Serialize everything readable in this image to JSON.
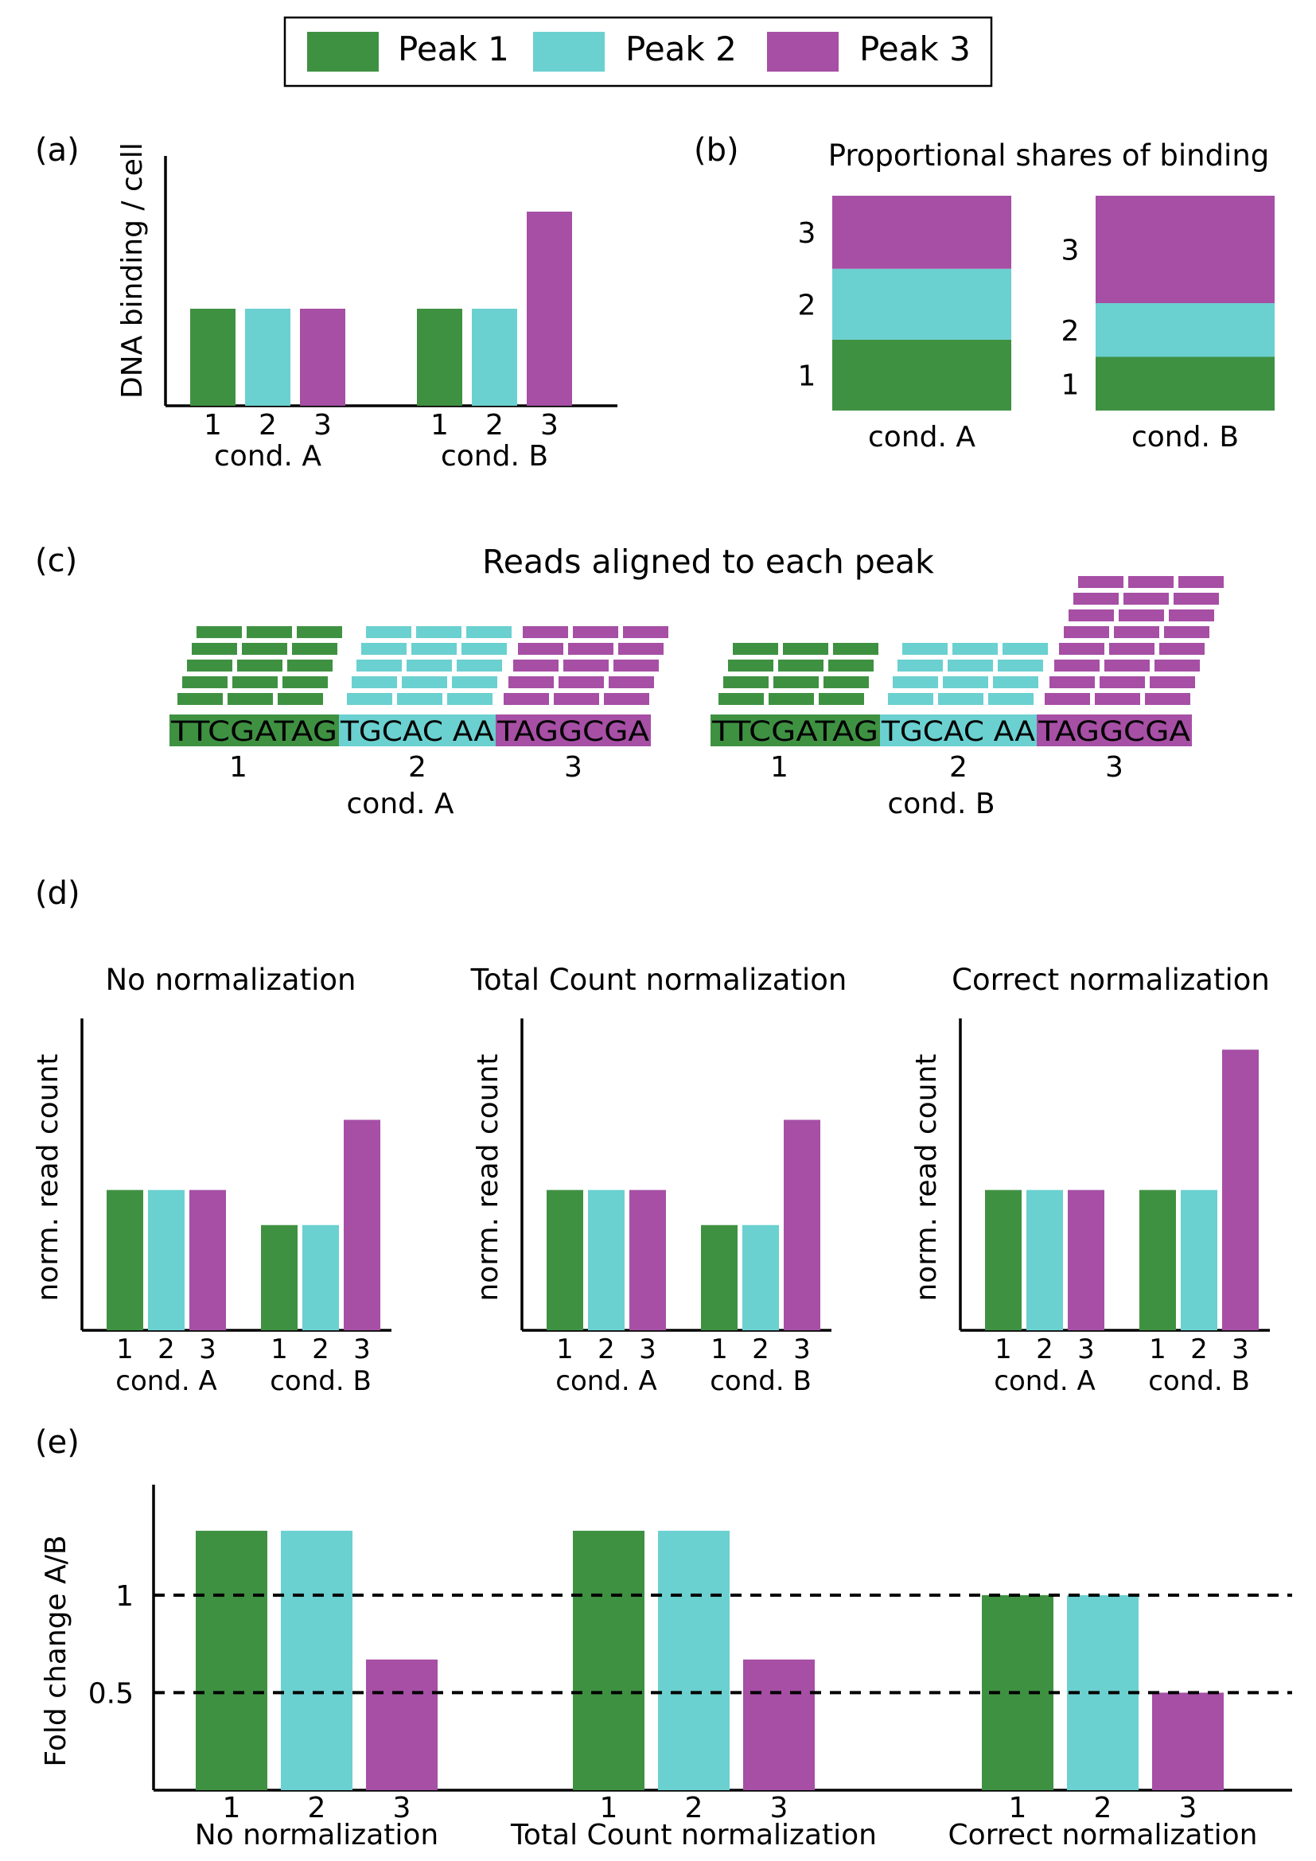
{
  "legend": {
    "position": "top-center",
    "entries": [
      {
        "label": "Peak 1",
        "color": "#3f9142"
      },
      {
        "label": "Peak 2",
        "color": "#6bd0d0"
      },
      {
        "label": "Peak 3",
        "color": "#a64fa5"
      }
    ]
  },
  "colors": {
    "peak1": "#3f9142",
    "peak2": "#6bd0d0",
    "peak3": "#a64fa5"
  },
  "panels": {
    "a": {
      "tag": "(a)",
      "chart_data": {
        "type": "bar",
        "ylabel": "DNA binding / cell",
        "groups": [
          {
            "label": "cond. A",
            "categories": [
              "1",
              "2",
              "3"
            ],
            "values": [
              1.0,
              1.0,
              1.0
            ]
          },
          {
            "label": "cond. B",
            "categories": [
              "1",
              "2",
              "3"
            ],
            "values": [
              1.0,
              1.0,
              2.0
            ]
          }
        ],
        "ylim": [
          0,
          2.5
        ]
      }
    },
    "b": {
      "tag": "(b)",
      "title": "Proportional shares of binding",
      "chart_data": {
        "type": "bar",
        "stacked": true,
        "groups": [
          {
            "label": "cond. A",
            "categories": [
              "1",
              "2",
              "3"
            ],
            "values": [
              0.33,
              0.33,
              0.34
            ]
          },
          {
            "label": "cond. B",
            "categories": [
              "1",
              "2",
              "3"
            ],
            "values": [
              0.25,
              0.25,
              0.5
            ]
          }
        ]
      }
    },
    "c": {
      "tag": "(c)",
      "title": "Reads aligned to each peak",
      "conditions": [
        {
          "label": "cond. A",
          "segments": [
            "TTCGATAG",
            "TGCAC AA",
            "TAGGCGA"
          ],
          "peak_labels": [
            "1",
            "2",
            "3"
          ],
          "read_rows": [
            5,
            5,
            5
          ]
        },
        {
          "label": "cond. B",
          "segments": [
            "TTCGATAG",
            "TGCAC AA",
            "TAGGCGA"
          ],
          "peak_labels": [
            "1",
            "2",
            "3"
          ],
          "read_rows": [
            4,
            4,
            8
          ]
        }
      ]
    },
    "d": {
      "tag": "(d)",
      "chart_data": [
        {
          "type": "bar",
          "title": "No normalization",
          "ylabel": "norm. read count",
          "groups": [
            {
              "label": "cond. A",
              "categories": [
                "1",
                "2",
                "3"
              ],
              "values": [
                1.0,
                1.0,
                1.0
              ]
            },
            {
              "label": "cond. B",
              "categories": [
                "1",
                "2",
                "3"
              ],
              "values": [
                0.75,
                0.75,
                1.5
              ]
            }
          ],
          "ylim": [
            0,
            2.2
          ]
        },
        {
          "type": "bar",
          "title": "Total Count normalization",
          "ylabel": "norm. read count",
          "groups": [
            {
              "label": "cond. A",
              "categories": [
                "1",
                "2",
                "3"
              ],
              "values": [
                1.0,
                1.0,
                1.0
              ]
            },
            {
              "label": "cond. B",
              "categories": [
                "1",
                "2",
                "3"
              ],
              "values": [
                0.75,
                0.75,
                1.5
              ]
            }
          ],
          "ylim": [
            0,
            2.2
          ]
        },
        {
          "type": "bar",
          "title": "Correct normalization",
          "ylabel": "norm. read count",
          "groups": [
            {
              "label": "cond. A",
              "categories": [
                "1",
                "2",
                "3"
              ],
              "values": [
                1.0,
                1.0,
                1.0
              ]
            },
            {
              "label": "cond. B",
              "categories": [
                "1",
                "2",
                "3"
              ],
              "values": [
                1.0,
                1.0,
                2.0
              ]
            }
          ],
          "ylim": [
            0,
            2.2
          ]
        }
      ]
    },
    "e": {
      "tag": "(e)",
      "chart_data": {
        "type": "bar",
        "ylabel": "Fold change A/B",
        "yticks": [
          0.5,
          1
        ],
        "ytick_labels": [
          "0.5",
          "1"
        ],
        "reference_lines": [
          0.5,
          1
        ],
        "ylim": [
          0,
          1.55
        ],
        "groups": [
          {
            "label": "No normalization",
            "categories": [
              "1",
              "2",
              "3"
            ],
            "values": [
              1.33,
              1.33,
              0.67
            ]
          },
          {
            "label": "Total Count normalization",
            "categories": [
              "1",
              "2",
              "3"
            ],
            "values": [
              1.33,
              1.33,
              0.67
            ]
          },
          {
            "label": "Correct normalization",
            "categories": [
              "1",
              "2",
              "3"
            ],
            "values": [
              1.0,
              1.0,
              0.5
            ]
          }
        ]
      }
    }
  }
}
